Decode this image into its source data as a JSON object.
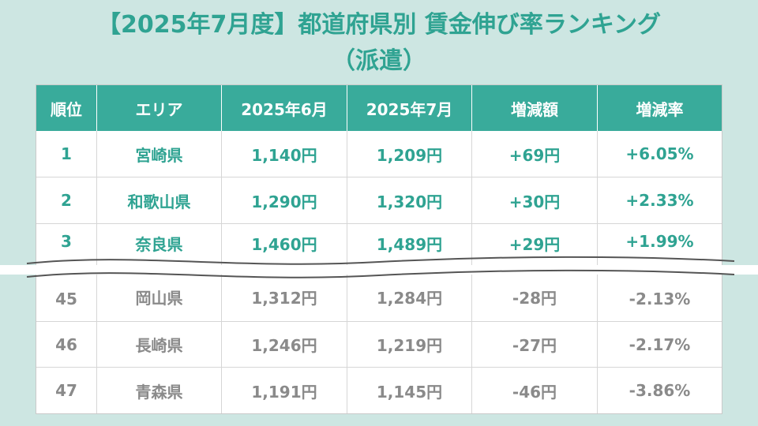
{
  "title": {
    "line1": "【2025年7月度】都道府県別 賃金伸び率ランキング",
    "line2": "（派遣）"
  },
  "table": {
    "headers": [
      "順位",
      "エリア",
      "2025年6月",
      "2025年7月",
      "増減額",
      "増減率"
    ],
    "top_rows": [
      [
        "1",
        "宮崎県",
        "1,140円",
        "1,209円",
        "+69円",
        "+6.05%"
      ],
      [
        "2",
        "和歌山県",
        "1,290円",
        "1,320円",
        "+30円",
        "+2.33%"
      ],
      [
        "3",
        "奈良県",
        "1,460円",
        "1,489円",
        "+29円",
        "+1.99%"
      ]
    ],
    "bottom_rows": [
      [
        "45",
        "岡山県",
        "1,312円",
        "1,284円",
        "-28円",
        "-2.13%"
      ],
      [
        "46",
        "長崎県",
        "1,246円",
        "1,219円",
        "-27円",
        "-2.17%"
      ],
      [
        "47",
        "青森県",
        "1,191円",
        "1,145円",
        "-46円",
        "-3.86%"
      ]
    ]
  },
  "colors": {
    "accent": "#39ab9b",
    "title": "#2fa392",
    "background": "#cde6e2",
    "muted_text": "#8a8a8a"
  },
  "icons": [
    "section-break-wave"
  ]
}
